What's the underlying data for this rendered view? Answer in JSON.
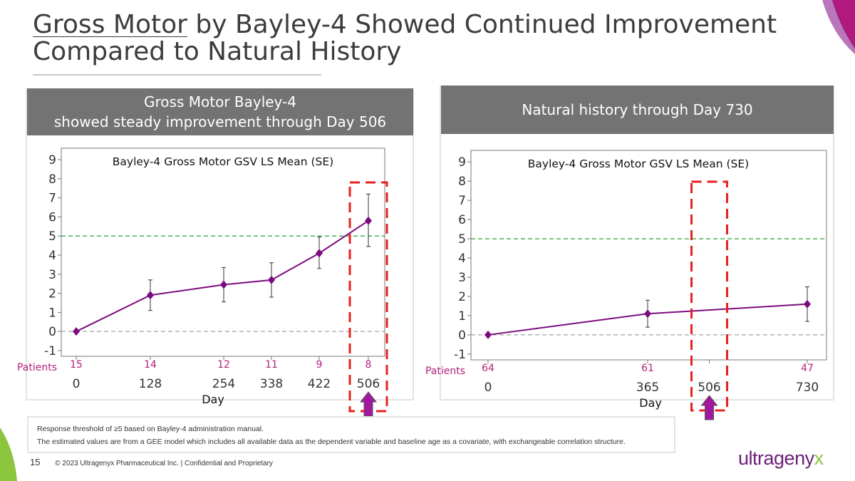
{
  "title": {
    "underlined": "Gross Motor",
    "rest": " by Bayley-4 Showed Continued Improvement Compared to Natural History"
  },
  "left_panel": {
    "header_line1": "Gross Motor Bayley-4",
    "header_line2": "showed steady improvement through Day 506"
  },
  "right_panel": {
    "header": "Natural history through Day 730"
  },
  "notes": {
    "line1": "Response threshold of ≥5 based on Bayley-4 administration manual.",
    "line2": "The estimated values are from a GEE model which includes all available data as the dependent variable and baseline age as a covariate, with exchangeable correlation structure."
  },
  "footer": {
    "page": "15",
    "copyright": "© 2023 Ultragenyx Pharmaceutical Inc.   |   Confidential and Proprietary"
  },
  "logo": {
    "part1": "ultra",
    "part2": "geny",
    "part3": "x"
  },
  "colors": {
    "series": "#7b0c7e",
    "threshold": "#4caf50",
    "baseline": "#b0b0b0",
    "highlight": "#e8201e",
    "arrow": "#a3179f",
    "patients_label": "#b3207c",
    "header_bg": "#737373"
  },
  "chart_data": [
    {
      "type": "line",
      "title": "Bayley-4 Gross Motor GSV LS Mean (SE)",
      "xlabel": "Day",
      "ylabel": "",
      "x": [
        0,
        128,
        254,
        338,
        422,
        506
      ],
      "xticks": [
        "0",
        "128",
        "254",
        "338",
        "422",
        "506"
      ],
      "values": [
        0,
        1.9,
        2.45,
        2.7,
        4.1,
        5.8
      ],
      "se_low": [
        0,
        1.1,
        1.55,
        1.8,
        3.3,
        4.45
      ],
      "se_high": [
        0,
        2.7,
        3.35,
        3.6,
        4.95,
        7.2
      ],
      "ylim": [
        -1.3,
        9.6
      ],
      "yticks": [
        -1,
        0,
        1,
        2,
        3,
        4,
        5,
        6,
        7,
        8,
        9
      ],
      "threshold": 5,
      "patients_label": "Patients",
      "patients": [
        "15",
        "14",
        "12",
        "11",
        "9",
        "8"
      ],
      "highlight_day": 506
    },
    {
      "type": "line",
      "title": "Bayley-4 Gross Motor GSV LS Mean (SE)",
      "xlabel": "Day",
      "ylabel": "",
      "x": [
        0,
        365,
        730
      ],
      "xticks": [
        "0",
        "365",
        "506",
        "730"
      ],
      "xtick_values": [
        0,
        365,
        506,
        730
      ],
      "values": [
        0,
        1.1,
        1.6
      ],
      "se_low": [
        0,
        0.4,
        0.7
      ],
      "se_high": [
        0,
        1.8,
        2.5
      ],
      "ylim": [
        -1.3,
        9.6
      ],
      "yticks": [
        -1,
        0,
        1,
        2,
        3,
        4,
        5,
        6,
        7,
        8,
        9
      ],
      "threshold": 5,
      "patients_label": "Patients",
      "patients": [
        "64",
        "61",
        "47"
      ],
      "highlight_day": 506
    }
  ]
}
